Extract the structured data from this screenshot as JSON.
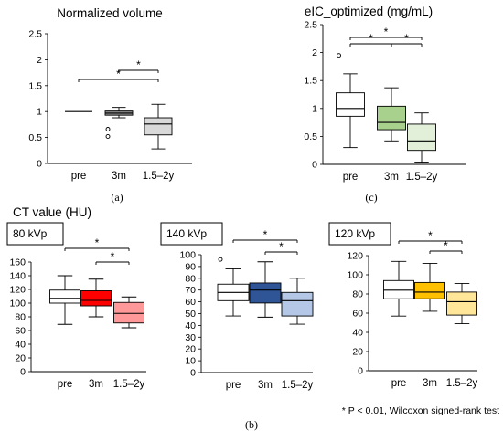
{
  "panel_labels": {
    "a": "(a)",
    "b": "(b)",
    "c": "(c)"
  },
  "section_title": "CT value (HU)",
  "footnote": "* P < 0.01, Wilcoxon signed-rank test",
  "chart_data": [
    {
      "id": "normalized-volume",
      "type": "box",
      "title": "Normalized volume",
      "categories": [
        "pre",
        "3m",
        "1.5–2y"
      ],
      "ylim": [
        0,
        2.5
      ],
      "yticks": [
        0,
        0.5,
        1,
        1.5,
        2,
        2.5
      ],
      "ytick_labels": [
        "0",
        "0.5",
        "1",
        "1.5",
        "2",
        "2.5"
      ],
      "boxes": [
        {
          "min": 1.0,
          "q1": 1.0,
          "median": 1.0,
          "q3": 1.0,
          "max": 1.0,
          "outliers": []
        },
        {
          "min": 0.88,
          "q1": 0.93,
          "median": 0.97,
          "q3": 1.01,
          "max": 1.08,
          "outliers": [
            0.52,
            0.66
          ]
        },
        {
          "min": 0.28,
          "q1": 0.55,
          "median": 0.76,
          "q3": 0.88,
          "max": 1.14,
          "outliers": []
        }
      ],
      "colors": [
        "#ffffff",
        "#8c8c8c",
        "#d9d9d9"
      ],
      "significance": [
        {
          "from": 0,
          "to": 2,
          "label": "*"
        },
        {
          "from": 1,
          "to": 2,
          "label": "*"
        }
      ]
    },
    {
      "id": "eic-optimized",
      "type": "box",
      "title": "eIC_optimized (mg/mL)",
      "categories": [
        "pre",
        "3m",
        "1.5–2y"
      ],
      "ylim": [
        0,
        2.5
      ],
      "yticks": [
        0,
        0.5,
        1,
        1.5,
        2,
        2.5
      ],
      "ytick_labels": [
        "0",
        "0.5",
        "1",
        "1.5",
        "2",
        "2.5"
      ],
      "boxes": [
        {
          "min": 0.3,
          "q1": 0.86,
          "median": 1.0,
          "q3": 1.28,
          "max": 1.62,
          "outliers": [
            1.95
          ]
        },
        {
          "min": 0.42,
          "q1": 0.62,
          "median": 0.75,
          "q3": 1.04,
          "max": 1.37,
          "outliers": []
        },
        {
          "min": 0.04,
          "q1": 0.25,
          "median": 0.42,
          "q3": 0.72,
          "max": 0.92,
          "outliers": []
        }
      ],
      "colors": [
        "#ffffff",
        "#a9d18e",
        "#e2f0d9"
      ],
      "significance": [
        {
          "from": 0,
          "to": 2,
          "label": "*"
        },
        {
          "from": 0,
          "to": 1,
          "label": "*"
        },
        {
          "from": 1,
          "to": 2,
          "label": "*"
        }
      ]
    },
    {
      "id": "ct-80kvp",
      "type": "box",
      "title": "80 kVp",
      "categories": [
        "pre",
        "3m",
        "1.5–2y"
      ],
      "ylim": [
        0,
        160
      ],
      "yticks": [
        0,
        20,
        40,
        60,
        80,
        100,
        120,
        140,
        160
      ],
      "ytick_labels": [
        "0",
        "20",
        "40",
        "60",
        "80",
        "100",
        "120",
        "140",
        "160"
      ],
      "boxes": [
        {
          "min": 69,
          "q1": 100,
          "median": 107,
          "q3": 119,
          "max": 140,
          "outliers": []
        },
        {
          "min": 80,
          "q1": 96,
          "median": 104,
          "q3": 118,
          "max": 135,
          "outliers": []
        },
        {
          "min": 64,
          "q1": 71,
          "median": 85,
          "q3": 101,
          "max": 109,
          "outliers": []
        }
      ],
      "colors": [
        "#ffffff",
        "#ff0000",
        "#ff9999"
      ],
      "significance": [
        {
          "from": 0,
          "to": 2,
          "label": "*"
        },
        {
          "from": 1,
          "to": 2,
          "label": "*"
        }
      ]
    },
    {
      "id": "ct-140kvp",
      "type": "box",
      "title": "140 kVp",
      "categories": [
        "pre",
        "3m",
        "1.5–2y"
      ],
      "ylim": [
        0,
        100
      ],
      "yticks": [
        0,
        10,
        20,
        30,
        40,
        50,
        60,
        70,
        80,
        90,
        100
      ],
      "ytick_labels": [
        "0",
        "10",
        "20",
        "30",
        "40",
        "50",
        "60",
        "70",
        "80",
        "90",
        "100"
      ],
      "boxes": [
        {
          "min": 48,
          "q1": 61,
          "median": 68,
          "q3": 75,
          "max": 88,
          "outliers": [
            96
          ]
        },
        {
          "min": 47,
          "q1": 59,
          "median": 70,
          "q3": 76,
          "max": 94,
          "outliers": []
        },
        {
          "min": 41,
          "q1": 48,
          "median": 61,
          "q3": 68,
          "max": 80,
          "outliers": []
        }
      ],
      "colors": [
        "#ffffff",
        "#2f5597",
        "#b4c7e7"
      ],
      "significance": [
        {
          "from": 0,
          "to": 2,
          "label": "*"
        },
        {
          "from": 1,
          "to": 2,
          "label": "*"
        }
      ]
    },
    {
      "id": "ct-120kvp",
      "type": "box",
      "title": "120 kVp",
      "categories": [
        "pre",
        "3m",
        "1.5–2y"
      ],
      "ylim": [
        0,
        120
      ],
      "yticks": [
        0,
        20,
        40,
        60,
        80,
        100,
        120
      ],
      "ytick_labels": [
        "0",
        "20",
        "40",
        "60",
        "80",
        "100",
        "120"
      ],
      "boxes": [
        {
          "min": 57,
          "q1": 75,
          "median": 84,
          "q3": 94,
          "max": 114,
          "outliers": []
        },
        {
          "min": 62,
          "q1": 75,
          "median": 82,
          "q3": 92,
          "max": 112,
          "outliers": []
        },
        {
          "min": 49,
          "q1": 58,
          "median": 72,
          "q3": 82,
          "max": 91,
          "outliers": []
        }
      ],
      "colors": [
        "#ffffff",
        "#ffc000",
        "#ffe699"
      ],
      "significance": [
        {
          "from": 0,
          "to": 2,
          "label": "*"
        },
        {
          "from": 1,
          "to": 2,
          "label": "*"
        }
      ]
    }
  ]
}
